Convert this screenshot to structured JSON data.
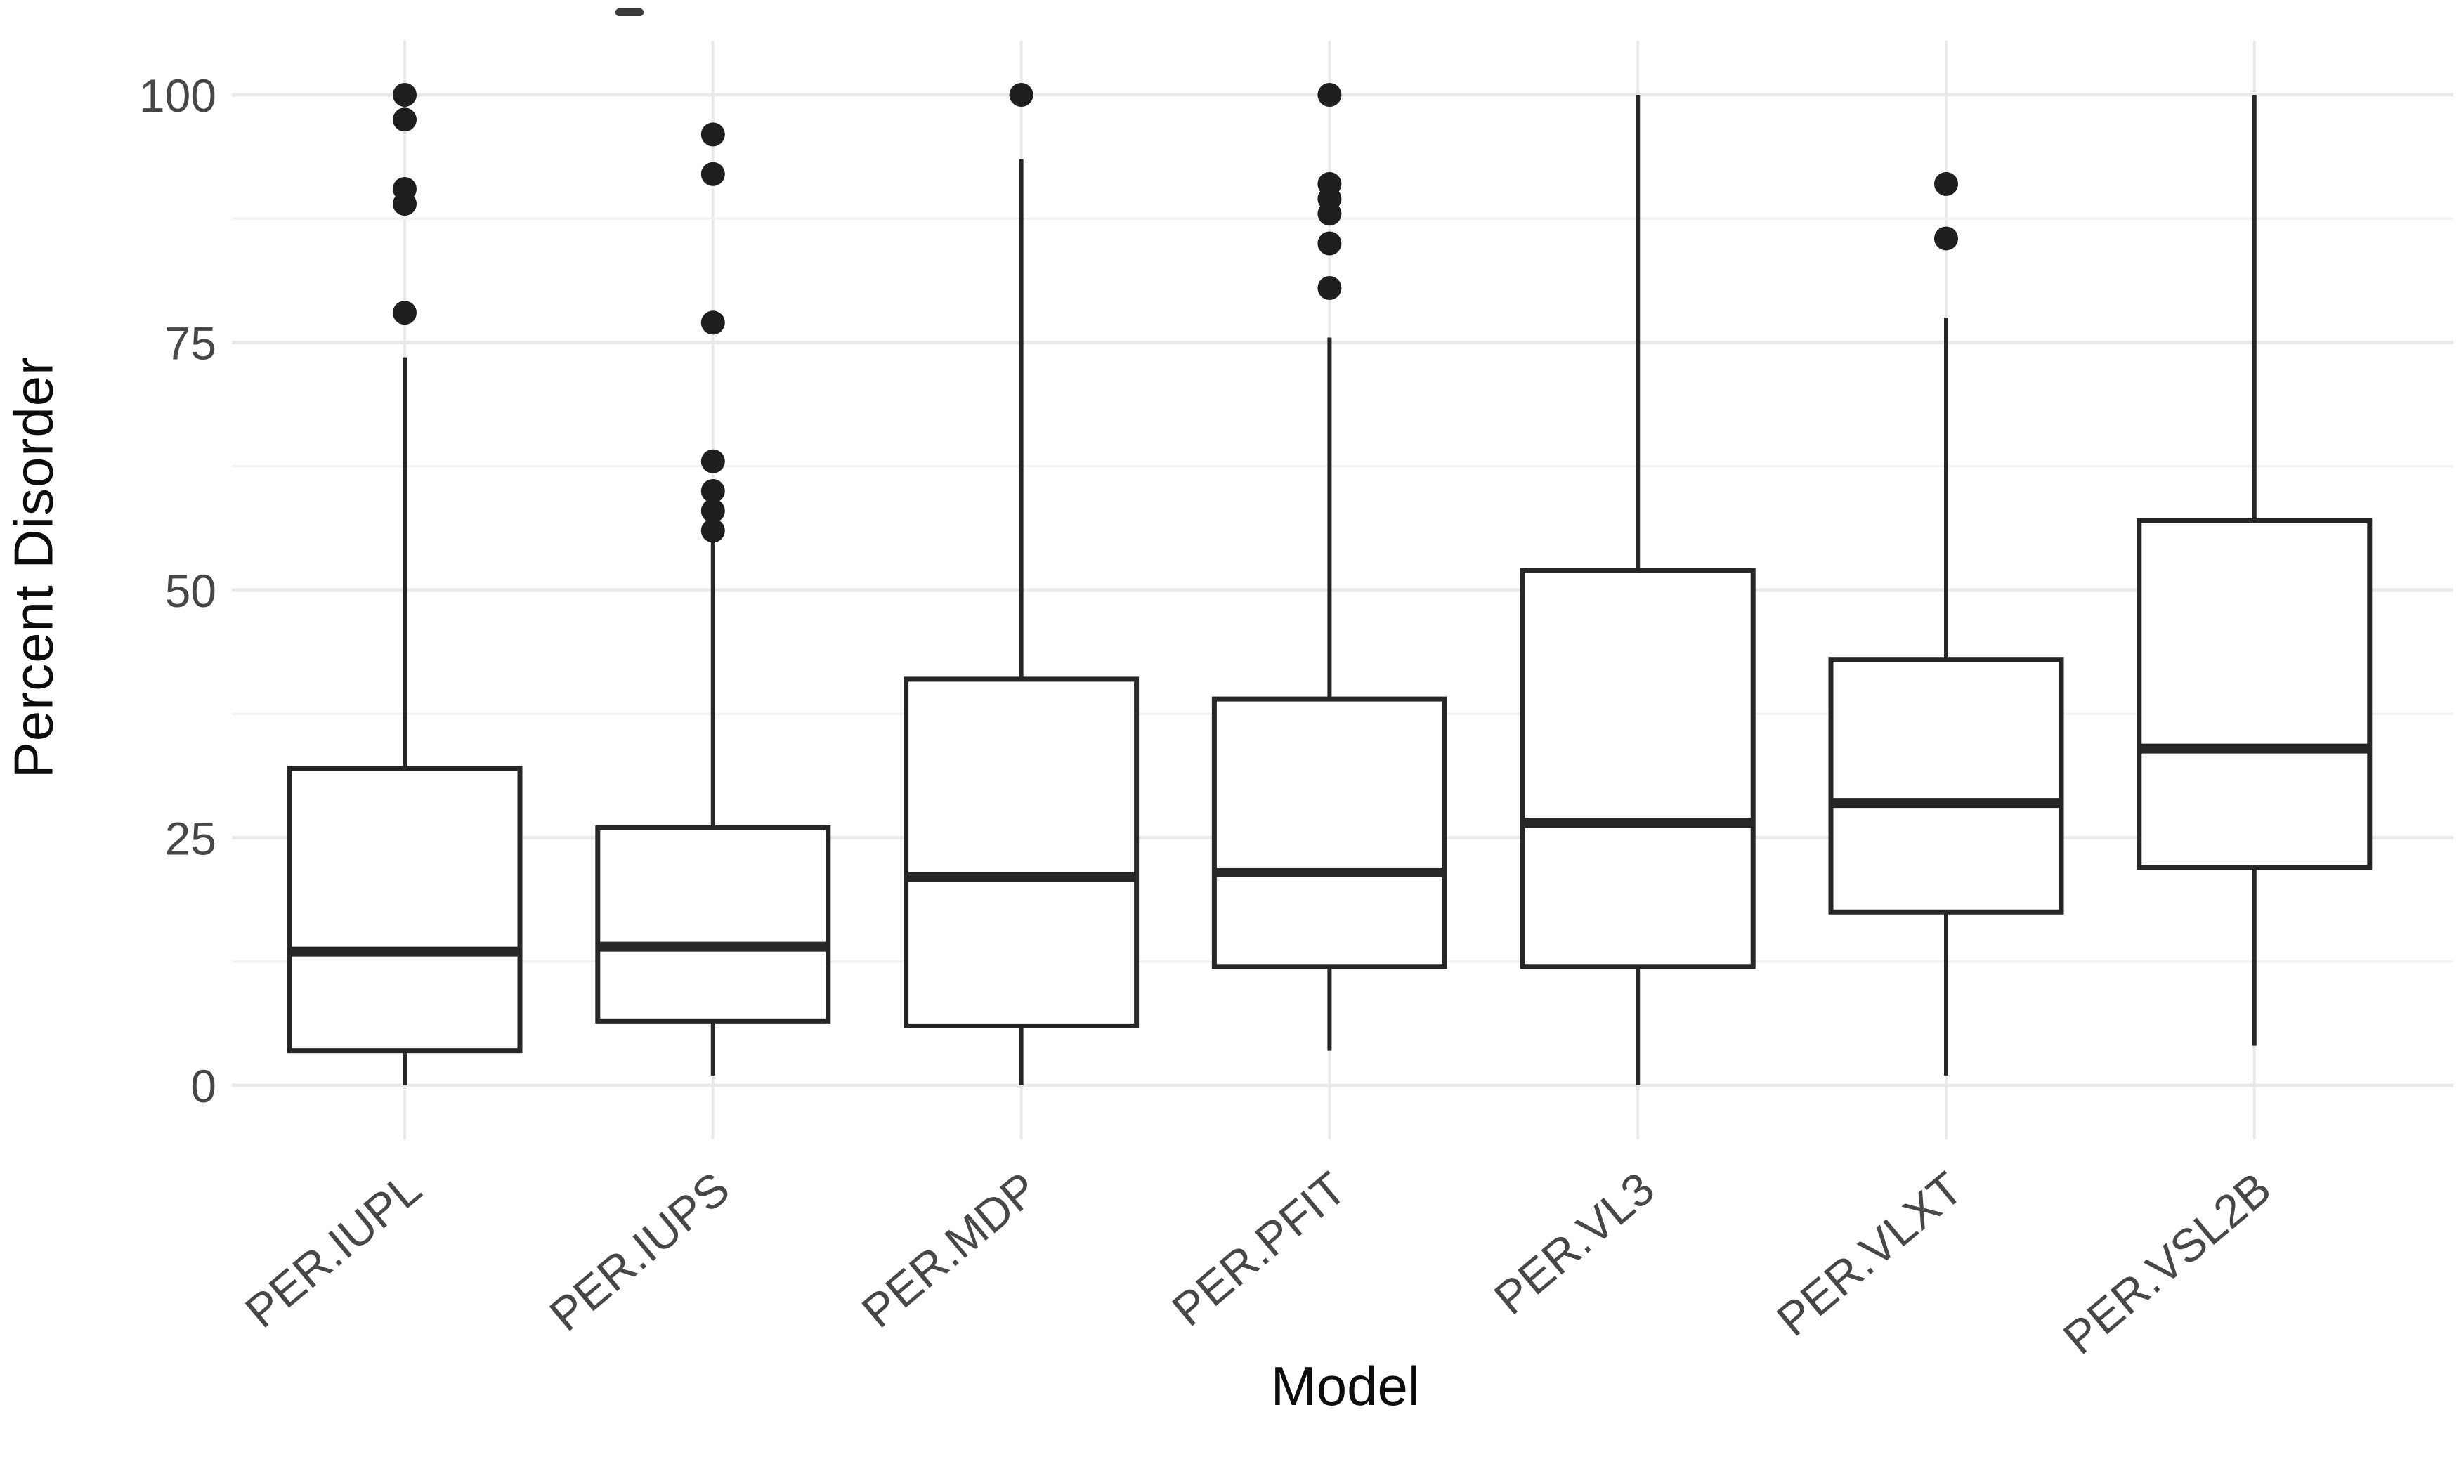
{
  "chart_data": {
    "type": "boxplot",
    "title": "",
    "xlabel": "Model",
    "ylabel": "Percent Disorder",
    "ylim": [
      0,
      100
    ],
    "yticks": [
      0,
      25,
      50,
      75,
      100
    ],
    "yminor": [
      12.5,
      37.5,
      62.5,
      87.5
    ],
    "grid": true,
    "legend": false,
    "categories": [
      "PER.IUPL",
      "PER.IUPS",
      "PER.MDP",
      "PER.PFIT",
      "PER.VL3",
      "PER.VLXT",
      "PER.VSL2B"
    ],
    "series": [
      {
        "name": "PER.IUPL",
        "whisker_low": 0,
        "q1": 3.5,
        "median": 13.5,
        "q3": 32,
        "whisker_high": 73.5,
        "outliers": [
          78,
          89,
          90.5,
          97.5,
          100
        ]
      },
      {
        "name": "PER.IUPS",
        "whisker_low": 1,
        "q1": 6.5,
        "median": 14,
        "q3": 26,
        "whisker_high": 55,
        "outliers": [
          56,
          58,
          60,
          63,
          77,
          92,
          96
        ]
      },
      {
        "name": "PER.MDP",
        "whisker_low": 0,
        "q1": 6,
        "median": 21,
        "q3": 41,
        "whisker_high": 93.5,
        "outliers": [
          100
        ]
      },
      {
        "name": "PER.PFIT",
        "whisker_low": 3.5,
        "q1": 12,
        "median": 21.5,
        "q3": 39,
        "whisker_high": 75.5,
        "outliers": [
          80.5,
          85,
          88,
          89.5,
          91,
          100
        ]
      },
      {
        "name": "PER.VL3",
        "whisker_low": 0,
        "q1": 12,
        "median": 26.5,
        "q3": 52,
        "whisker_high": 100,
        "outliers": []
      },
      {
        "name": "PER.VLXT",
        "whisker_low": 1,
        "q1": 17.5,
        "median": 28.5,
        "q3": 43,
        "whisker_high": 77.5,
        "outliers": [
          85.5,
          91
        ]
      },
      {
        "name": "PER.VSL2B",
        "whisker_low": 4,
        "q1": 22,
        "median": 34,
        "q3": 57,
        "whisker_high": 100,
        "outliers": []
      }
    ]
  },
  "colors": {
    "box_stroke": "#262626",
    "median_stroke": "#262626",
    "outlier_fill": "#1f1f1f",
    "grid_major": "#e9e9e9",
    "grid_minor": "#f1f1f1",
    "tick_label": "#474747",
    "axis_title": "#0d0d0d"
  }
}
